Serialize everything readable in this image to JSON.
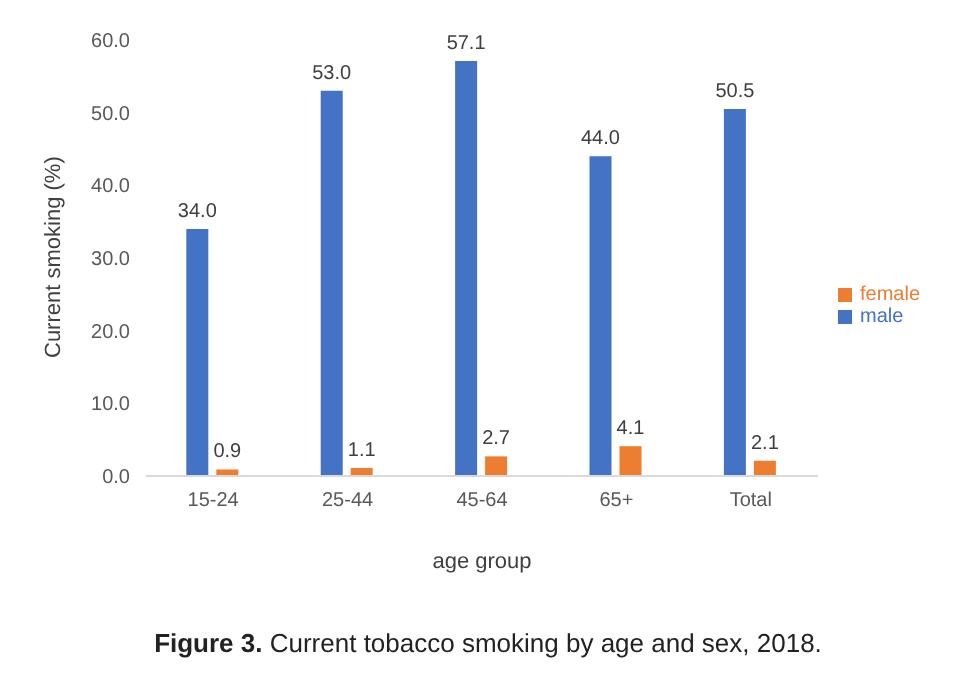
{
  "chart_data": {
    "type": "bar",
    "categories": [
      "15-24",
      "25-44",
      "45-64",
      "65+",
      "Total"
    ],
    "series": [
      {
        "name": "male",
        "color": "#4472c4",
        "values": [
          34.0,
          53.0,
          57.1,
          44.0,
          50.5
        ],
        "value_labels": [
          "34.0",
          "53.0",
          "57.1",
          "44.0",
          "50.5"
        ]
      },
      {
        "name": "female",
        "color": "#ed7d31",
        "values": [
          0.9,
          1.1,
          2.7,
          4.1,
          2.1
        ],
        "value_labels": [
          "0.9",
          "1.1",
          "2.7",
          "4.1",
          "2.1"
        ]
      }
    ],
    "xlabel": "age group",
    "ylabel": "Current smoking  (%)",
    "ylim": [
      0,
      60
    ],
    "yticks": [
      {
        "value": 0,
        "label": "0.0"
      },
      {
        "value": 10,
        "label": "10.0"
      },
      {
        "value": 20,
        "label": "20.0"
      },
      {
        "value": 30,
        "label": "30.0"
      },
      {
        "value": 40,
        "label": "40.0"
      },
      {
        "value": 50,
        "label": "50.0"
      },
      {
        "value": 60,
        "label": "60.0"
      }
    ],
    "grid": false,
    "legend": "right",
    "annotations": [
      "Figure 3. Current tobacco smoking by age and sex, 2018."
    ]
  }
}
